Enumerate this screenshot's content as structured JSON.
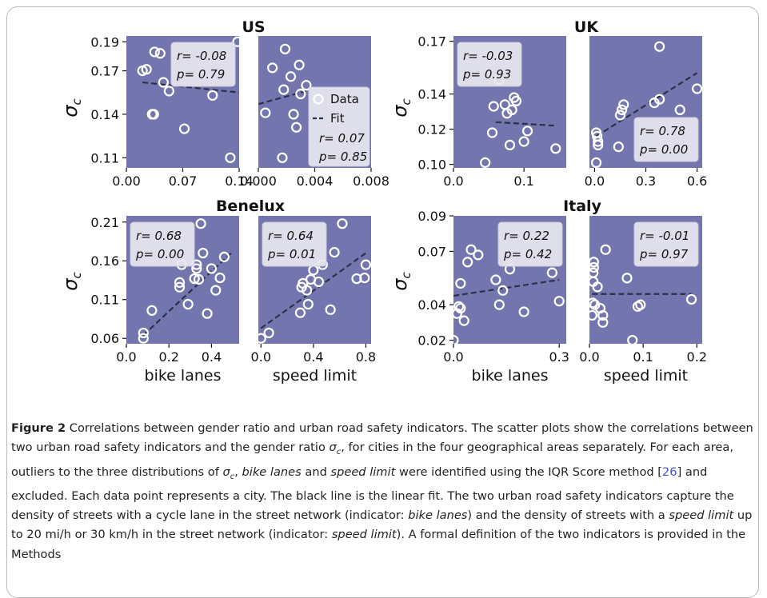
{
  "figure": {
    "y_symbol": "σ",
    "y_subscript": "c",
    "colors": {
      "panel_bg": "#7376ae",
      "marker": "#ffffff",
      "fit_line": "#2d3047",
      "legend_bg": "#e8e8f0"
    },
    "x_labels": {
      "bike": "bike lanes",
      "speed": "speed limit"
    }
  },
  "chart_data": [
    {
      "id": "us",
      "type": "scatter",
      "title": "US",
      "ylim": [
        0.103,
        0.194
      ],
      "yticks": [
        0.11,
        0.14,
        0.17,
        0.19
      ],
      "panels": [
        {
          "id": "us-bike",
          "indicator": "bike lanes",
          "xlim": [
            0,
            0.14
          ],
          "xticks": [
            "0.00",
            "0.07",
            "0.14"
          ],
          "points": [
            [
              0.02,
              0.17
            ],
            [
              0.025,
              0.171
            ],
            [
              0.032,
              0.14
            ],
            [
              0.034,
              0.14
            ],
            [
              0.035,
              0.183
            ],
            [
              0.042,
              0.182
            ],
            [
              0.046,
              0.162
            ],
            [
              0.053,
              0.156
            ],
            [
              0.072,
              0.13
            ],
            [
              0.107,
              0.153
            ],
            [
              0.129,
              0.11
            ],
            [
              0.138,
              0.19
            ]
          ],
          "fit": [
            [
              0.02,
              0.162
            ],
            [
              0.14,
              0.155
            ]
          ],
          "stats": {
            "r": "r= -0.08",
            "p": "p= 0.79"
          },
          "stats_pos": "top-right"
        },
        {
          "id": "us-speed",
          "indicator": "speed limit",
          "xlim": [
            0,
            0.008
          ],
          "xticks": [
            "0.000",
            "0.004",
            "0.008"
          ],
          "points": [
            [
              0.0005,
              0.141
            ],
            [
              0.001,
              0.172
            ],
            [
              0.0017,
              0.11
            ],
            [
              0.0018,
              0.157
            ],
            [
              0.0019,
              0.185
            ],
            [
              0.0023,
              0.166
            ],
            [
              0.0025,
              0.14
            ],
            [
              0.0027,
              0.131
            ],
            [
              0.0029,
              0.174
            ],
            [
              0.003,
              0.154
            ],
            [
              0.0034,
              0.16
            ]
          ],
          "fit": [
            [
              0,
              0.147
            ],
            [
              0.0034,
              0.156
            ]
          ],
          "legend": {
            "data": "Data",
            "fit": "Fit"
          },
          "stats": {
            "r": "r= 0.07",
            "p": "p= 0.85"
          },
          "stats_pos": "legend"
        }
      ]
    },
    {
      "id": "uk",
      "type": "scatter",
      "title": "UK",
      "ylim": [
        0.098,
        0.173
      ],
      "yticks": [
        0.1,
        0.12,
        0.14,
        0.17
      ],
      "panels": [
        {
          "id": "uk-bike",
          "indicator": "bike lanes",
          "xlim": [
            0,
            0.16
          ],
          "xticks": [
            "0.0",
            "0.1"
          ],
          "points": [
            [
              0.045,
              0.101
            ],
            [
              0.055,
              0.118
            ],
            [
              0.057,
              0.133
            ],
            [
              0.065,
              0.148
            ],
            [
              0.073,
              0.134
            ],
            [
              0.076,
              0.129
            ],
            [
              0.08,
              0.111
            ],
            [
              0.083,
              0.131
            ],
            [
              0.086,
              0.138
            ],
            [
              0.089,
              0.136
            ],
            [
              0.1,
              0.113
            ],
            [
              0.105,
              0.119
            ],
            [
              0.145,
              0.109
            ]
          ],
          "fit": [
            [
              0.06,
              0.124
            ],
            [
              0.145,
              0.122
            ]
          ],
          "stats": {
            "r": "r= -0.03",
            "p": "p= 0.93"
          },
          "stats_pos": "top-left"
        },
        {
          "id": "uk-speed",
          "indicator": "speed limit",
          "xlim": [
            -0.03,
            0.63
          ],
          "xticks": [
            "0.0",
            "0.3",
            "0.6"
          ],
          "points": [
            [
              0.01,
              0.101
            ],
            [
              0.01,
              0.118
            ],
            [
              0.015,
              0.116
            ],
            [
              0.02,
              0.111
            ],
            [
              0.02,
              0.113
            ],
            [
              0.14,
              0.11
            ],
            [
              0.15,
              0.128
            ],
            [
              0.16,
              0.131
            ],
            [
              0.17,
              0.134
            ],
            [
              0.35,
              0.135
            ],
            [
              0.38,
              0.137
            ],
            [
              0.38,
              0.167
            ],
            [
              0.5,
              0.131
            ],
            [
              0.6,
              0.143
            ]
          ],
          "fit": [
            [
              0.01,
              0.116
            ],
            [
              0.6,
              0.152
            ]
          ],
          "stats": {
            "r": "r= 0.78",
            "p": "p= 0.00"
          },
          "stats_pos": "bottom-right"
        }
      ]
    },
    {
      "id": "benelux",
      "type": "scatter",
      "title": "Benelux",
      "ylim": [
        0.053,
        0.218
      ],
      "yticks": [
        0.06,
        0.11,
        0.16,
        0.21
      ],
      "panels": [
        {
          "id": "benelux-bike",
          "indicator": "bike lanes",
          "xlim": [
            0,
            0.53
          ],
          "xticks": [
            "0.0",
            "0.2",
            "0.4"
          ],
          "points": [
            [
              0.08,
              0.06
            ],
            [
              0.08,
              0.067
            ],
            [
              0.12,
              0.096
            ],
            [
              0.25,
              0.126
            ],
            [
              0.25,
              0.132
            ],
            [
              0.26,
              0.155
            ],
            [
              0.29,
              0.104
            ],
            [
              0.32,
              0.137
            ],
            [
              0.33,
              0.15
            ],
            [
              0.33,
              0.155
            ],
            [
              0.34,
              0.136
            ],
            [
              0.35,
              0.208
            ],
            [
              0.36,
              0.17
            ],
            [
              0.38,
              0.092
            ],
            [
              0.4,
              0.15
            ],
            [
              0.42,
              0.122
            ],
            [
              0.44,
              0.138
            ],
            [
              0.46,
              0.165
            ]
          ],
          "fit": [
            [
              0.08,
              0.064
            ],
            [
              0.5,
              0.172
            ]
          ],
          "stats": {
            "r": "r= 0.68",
            "p": "p= 0.00"
          },
          "stats_pos": "top-left"
        },
        {
          "id": "benelux-speed",
          "indicator": "speed limit",
          "xlim": [
            -0.02,
            0.84
          ],
          "xticks": [
            "0.0",
            "0.4",
            "0.8"
          ],
          "points": [
            [
              0.0,
              0.06
            ],
            [
              0.06,
              0.067
            ],
            [
              0.3,
              0.093
            ],
            [
              0.31,
              0.126
            ],
            [
              0.32,
              0.131
            ],
            [
              0.35,
              0.122
            ],
            [
              0.36,
              0.104
            ],
            [
              0.38,
              0.136
            ],
            [
              0.4,
              0.148
            ],
            [
              0.44,
              0.133
            ],
            [
              0.47,
              0.155
            ],
            [
              0.53,
              0.097
            ],
            [
              0.56,
              0.171
            ],
            [
              0.62,
              0.208
            ],
            [
              0.73,
              0.137
            ],
            [
              0.79,
              0.138
            ],
            [
              0.8,
              0.155
            ]
          ],
          "fit": [
            [
              0,
              0.073
            ],
            [
              0.8,
              0.17
            ]
          ],
          "stats": {
            "r": "r= 0.64",
            "p": "p= 0.01"
          },
          "stats_pos": "top-left"
        }
      ]
    },
    {
      "id": "italy",
      "type": "scatter",
      "title": "Italy",
      "ylim": [
        0.018,
        0.09
      ],
      "yticks": [
        0.02,
        0.04,
        0.07,
        0.09
      ],
      "panels": [
        {
          "id": "italy-bike",
          "indicator": "bike lanes",
          "xlim": [
            0,
            0.32
          ],
          "xticks": [
            "0.0",
            "0.3"
          ],
          "points": [
            [
              0.0,
              0.02
            ],
            [
              0.01,
              0.035
            ],
            [
              0.015,
              0.039
            ],
            [
              0.02,
              0.052
            ],
            [
              0.02,
              0.038
            ],
            [
              0.03,
              0.031
            ],
            [
              0.04,
              0.064
            ],
            [
              0.05,
              0.071
            ],
            [
              0.07,
              0.068
            ],
            [
              0.12,
              0.054
            ],
            [
              0.13,
              0.04
            ],
            [
              0.14,
              0.048
            ],
            [
              0.16,
              0.06
            ],
            [
              0.2,
              0.036
            ],
            [
              0.28,
              0.058
            ],
            [
              0.3,
              0.042
            ]
          ],
          "fit": [
            [
              0.0,
              0.045
            ],
            [
              0.3,
              0.054
            ]
          ],
          "stats": {
            "r": "r= 0.22",
            "p": "p= 0.42"
          },
          "stats_pos": "top-right"
        },
        {
          "id": "italy-speed",
          "indicator": "speed limit",
          "xlim": [
            0,
            0.21
          ],
          "xticks": [
            "0.0",
            "0.1",
            "0.2"
          ],
          "points": [
            [
              0.005,
              0.034
            ],
            [
              0.006,
              0.041
            ],
            [
              0.007,
              0.053
            ],
            [
              0.007,
              0.058
            ],
            [
              0.008,
              0.061
            ],
            [
              0.008,
              0.064
            ],
            [
              0.01,
              0.04
            ],
            [
              0.015,
              0.05
            ],
            [
              0.02,
              0.038
            ],
            [
              0.025,
              0.034
            ],
            [
              0.025,
              0.03
            ],
            [
              0.03,
              0.071
            ],
            [
              0.07,
              0.055
            ],
            [
              0.08,
              0.02
            ],
            [
              0.09,
              0.039
            ],
            [
              0.095,
              0.04
            ],
            [
              0.17,
              0.067
            ],
            [
              0.19,
              0.043
            ]
          ],
          "fit": [
            [
              0.005,
              0.046
            ],
            [
              0.19,
              0.046
            ]
          ],
          "stats": {
            "r": "r= -0.01",
            "p": "p= 0.97"
          },
          "stats_pos": "top-right"
        }
      ]
    }
  ],
  "caption": {
    "label": "Figure 2",
    "text": "Correlations between gender ratio and urban road safety indicators. The scatter plots show the correlations between two urban road safety indicators and the gender ratio σc, for cities in the four geographical areas separately. For each area, outliers to the three distributions of σc, bike lanes and speed limit were identified using the IQR Score method [26] and excluded. Each data point represents a city. The black line is the linear fit. The two urban road safety indicators capture the density of streets with a cycle lane in the street network (indicator: bike lanes) and the density of streets with a speed limit up to 20 mi/h or 30 km/h in the street network (indicator: speed limit). A formal definition of the two indicators is provided in the Methods"
  }
}
